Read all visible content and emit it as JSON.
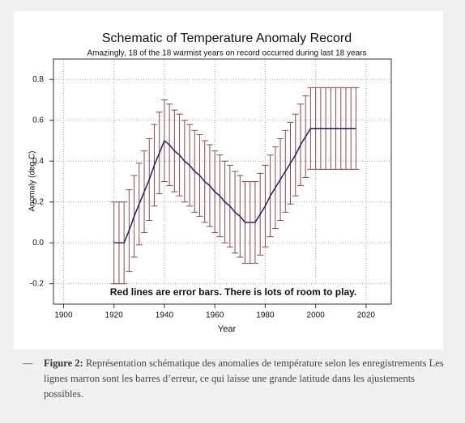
{
  "chart_data": {
    "type": "line",
    "title": "Schematic of Temperature Anomaly Record",
    "subtitle": "Amazingly, 18 of the 18 warmist years on record occurred during last 18 years",
    "annotation": "Red lines are error bars. There is lots of room to play.",
    "x_label": "Year",
    "y_label": "Anomaly (deg C)",
    "x": [
      1920,
      1922,
      1924,
      1926,
      1928,
      1930,
      1932,
      1934,
      1936,
      1938,
      1940,
      1942,
      1944,
      1946,
      1948,
      1950,
      1952,
      1954,
      1956,
      1958,
      1960,
      1962,
      1964,
      1966,
      1968,
      1970,
      1972,
      1974,
      1976,
      1978,
      1980,
      1982,
      1984,
      1986,
      1988,
      1990,
      1992,
      1994,
      1996,
      1998,
      2000,
      2002,
      2004,
      2006,
      2008,
      2010,
      2012,
      2014,
      2016
    ],
    "series": [
      {
        "color": "#2b2b5e",
        "error_color": "#8b4a4a",
        "values": [
          0,
          0,
          0,
          0.06,
          0.13,
          0.19,
          0.25,
          0.31,
          0.38,
          0.44,
          0.5,
          0.48,
          0.45,
          0.43,
          0.4,
          0.38,
          0.35,
          0.33,
          0.3,
          0.28,
          0.25,
          0.23,
          0.2,
          0.18,
          0.15,
          0.13,
          0.1,
          0.1,
          0.1,
          0.14,
          0.18,
          0.23,
          0.27,
          0.31,
          0.35,
          0.39,
          0.43,
          0.48,
          0.52,
          0.56,
          0.56,
          0.56,
          0.56,
          0.56,
          0.56,
          0.56,
          0.56,
          0.56,
          0.56
        ],
        "errors": [
          0.2,
          0.2,
          0.2,
          0.2,
          0.2,
          0.2,
          0.2,
          0.2,
          0.2,
          0.2,
          0.2,
          0.2,
          0.2,
          0.2,
          0.2,
          0.2,
          0.2,
          0.2,
          0.2,
          0.2,
          0.2,
          0.2,
          0.2,
          0.2,
          0.2,
          0.2,
          0.2,
          0.2,
          0.2,
          0.2,
          0.2,
          0.2,
          0.2,
          0.2,
          0.2,
          0.2,
          0.2,
          0.2,
          0.2,
          0.2,
          0.2,
          0.2,
          0.2,
          0.2,
          0.2,
          0.2,
          0.2,
          0.2,
          0.2
        ]
      }
    ],
    "xlim": [
      1896,
      2030
    ],
    "xticks": [
      1900,
      1920,
      1940,
      1960,
      1980,
      2000,
      2020
    ],
    "ylim": [
      -0.3,
      0.9
    ],
    "yticks": [
      -0.2,
      {
        "value": 0,
        "label": "0.0"
      },
      0.2,
      0.4,
      0.6,
      0.8
    ],
    "grid": true
  },
  "caption": {
    "dash": "—",
    "label": "Figure 2:",
    "text": "Représentation schématique des anomalies de température selon les enregistrements Les lignes marron sont les barres d’erreur, ce qui laisse une grande latitude dans les ajustements possibles."
  }
}
